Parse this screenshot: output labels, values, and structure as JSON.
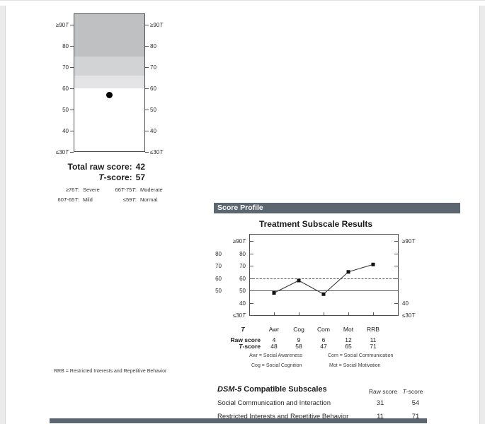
{
  "colors": {
    "band_severe": "#bfc0c2",
    "band_moderate": "#d2d3d5",
    "band_mild": "#e4e4e6",
    "band_normal": "#ffffff",
    "header_bar": "#5b6670",
    "plot_border": "#4d4d4d",
    "point_color": "#111111"
  },
  "chart_data": [
    {
      "id": "total-score-gauge",
      "type": "scatter",
      "title": "",
      "y_tick_values": [
        90,
        80,
        70,
        60,
        50,
        40,
        30
      ],
      "y_tick_labels": [
        "≥90T",
        "80",
        "70",
        "60",
        "50",
        "40",
        "≤30T"
      ],
      "ylim": [
        30,
        95.3
      ],
      "grid": false,
      "bands": [
        {
          "label": "Severe",
          "from": 75,
          "to": 95.3,
          "color": "#bfc0c2"
        },
        {
          "label": "Moderate",
          "from": 66,
          "to": 75,
          "color": "#d2d3d5"
        },
        {
          "label": "Mild",
          "from": 60,
          "to": 66,
          "color": "#e4e4e6"
        },
        {
          "label": "Normal",
          "from": 30,
          "to": 60,
          "color": "#ffffff"
        }
      ],
      "points": [
        {
          "name": "Total T-score",
          "value": 57
        }
      ]
    },
    {
      "id": "treatment-subscale-results",
      "type": "line",
      "title": "Treatment Subscale Results",
      "categories": [
        "Awr",
        "Cog",
        "Com",
        "Mot",
        "RRB"
      ],
      "series": [
        {
          "name": "T-score",
          "values": [
            48,
            58,
            47,
            65,
            71
          ]
        }
      ],
      "raw_scores": [
        4,
        9,
        6,
        12,
        11
      ],
      "x_axis_prefix": "T",
      "y_tick_values": [
        90,
        80,
        70,
        60,
        50,
        40,
        30
      ],
      "y_tick_labels_inner_left": [
        "≥90T",
        "80",
        "70",
        "60",
        "50",
        "40",
        "≤30T"
      ],
      "y_tick_labels_outer_left": [
        {
          "value": 80,
          "label": "80"
        },
        {
          "value": 70,
          "label": "70"
        },
        {
          "value": 60,
          "label": "60"
        },
        {
          "value": 50,
          "label": "50"
        }
      ],
      "y_tick_labels_right": [
        {
          "value": 90,
          "label": "≥90T"
        },
        {
          "value": 40,
          "label": "40"
        },
        {
          "value": 30,
          "label": "≤30T"
        }
      ],
      "reference_lines": [
        {
          "value": 60,
          "style": "dashed"
        },
        {
          "value": 50,
          "style": "solid"
        }
      ],
      "ylim": [
        30,
        95.7
      ],
      "grid": false,
      "legend_position": "below"
    }
  ],
  "score_summary": {
    "total_raw_label": "Total raw score:",
    "total_raw_value": "42",
    "t_score_label": "T-score:",
    "t_score_value": "57"
  },
  "severity_legend": {
    "rows": [
      {
        "k1": "≥76T:",
        "v1": "Severe",
        "k2": "66T-75T:",
        "v2": "Moderate"
      },
      {
        "k1": "60T-65T:",
        "v1": "Mild",
        "k2": "≤59T:",
        "v2": "Normal"
      }
    ]
  },
  "score_profile": {
    "header": "Score Profile"
  },
  "subscale_table": {
    "row_labels": {
      "raw": "Raw score",
      "t": "T-score"
    },
    "abbreviations": [
      {
        "text": "Awr = Social Awareness"
      },
      {
        "text": "Com = Social Communication"
      },
      {
        "text": "Cog = Social Cognition"
      },
      {
        "text": "Mot = Social Motivation"
      }
    ]
  },
  "rrb_note": "RRB = Restricted Interests and Repetitive Behavior",
  "dsm_table": {
    "title_italic": "DSM-5",
    "title_rest": " Compatible Subscales",
    "col_raw": "Raw score",
    "col_t": "T-score",
    "rows": [
      {
        "name": "Social Communication and Interaction",
        "raw": "31",
        "t": "54"
      },
      {
        "name": "Restricted Interests and Repetitive Behavior",
        "raw": "11",
        "t": "71"
      }
    ]
  }
}
